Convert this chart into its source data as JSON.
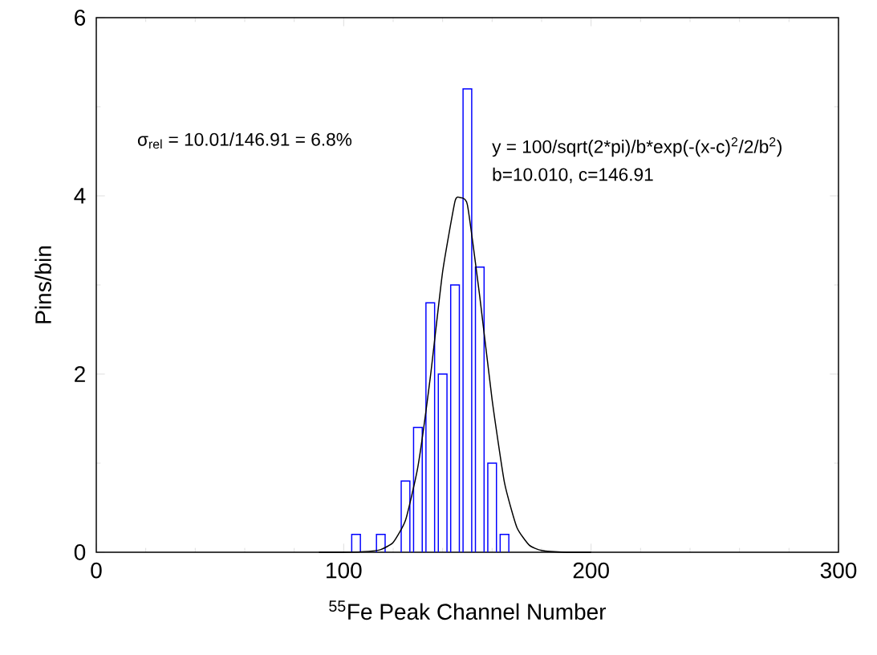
{
  "chart_data": {
    "type": "histogram",
    "xlabel": "$^{55}$Fe Peak Channel Number",
    "ylabel": "Pins/bin",
    "bins": [
      102.5,
      107.5,
      112.5,
      117.5,
      122.5,
      127.5,
      132.5,
      137.5,
      142.5,
      147.5,
      152.5,
      157.5,
      162.5,
      167.5
    ],
    "values": [
      0.2,
      0,
      0.2,
      0,
      0.8,
      1.4,
      2.8,
      2.0,
      3.0,
      5.2,
      3.2,
      1.0,
      0.2
    ],
    "color": "#0000ff",
    "series": [
      {
        "type": "line",
        "color": "#000000",
        "x": [
          90,
          100,
          110,
          115,
          120,
          125,
          130,
          135,
          140,
          145,
          147,
          150,
          155,
          160,
          165,
          170,
          175,
          180,
          190,
          200
        ],
        "values": [
          0,
          0,
          0.01,
          0.03,
          0.11,
          0.36,
          0.96,
          1.96,
          3.15,
          3.94,
          3.98,
          3.9,
          2.87,
          1.71,
          0.78,
          0.28,
          0.08,
          0.02,
          0,
          0
        ]
      }
    ],
    "xlim": [
      0,
      300
    ],
    "ylim": [
      0,
      6
    ],
    "xticks": [
      0,
      100,
      200,
      300
    ],
    "yticks": [
      0,
      2,
      4,
      6
    ],
    "annotations": [
      "σ$_{rel}$ = 10.01/146.91 = 6.8%",
      "y = 100/sqrt(2*pi)/b*exp(-(x-c)$^{2}$/2/b$^{2}$)",
      "b=10.010, c=146.91"
    ]
  }
}
